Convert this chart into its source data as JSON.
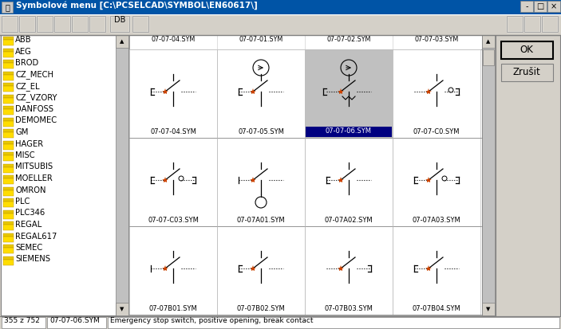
{
  "title": "Symbolové menu [C:\\PCSELCAD\\SYMBOL\\EN60617\\]",
  "bg_color": "#d4d0c8",
  "titlebar_color": "#0054a6",
  "titlebar_text_color": "#ffffff",
  "left_panel_bg": "#ffffff",
  "left_panel_items": [
    "ABB",
    "AEG",
    "BROD",
    "CZ_MECH",
    "CZ_EL",
    "CZ_VZORY",
    "DANFOSS",
    "DEMOMEC",
    "GM",
    "HAGER",
    "MISC",
    "MITSUBIS",
    "MOELLER",
    "OMRON",
    "PLC",
    "PLC346",
    "REGAL",
    "REGAL617",
    "SEMEC",
    "SIEMENS"
  ],
  "statusbar_left": "355 z 752",
  "statusbar_mid": "07-07-06.SYM",
  "statusbar_right": "Emergency stop switch, positive opening, break contact",
  "top_row_labels": [
    "07-07-04.SYM",
    "07-07-01.SYM",
    "07-07-02.SYM",
    "07-07-03.SYM"
  ],
  "grid_labels": [
    [
      "07-07-04.SYM",
      "07-07-05.SYM",
      "07-07-06.SYM",
      "07-07-C0.SYM"
    ],
    [
      "07-07-C03.SYM",
      "07-07A01.SYM",
      "07-07A02.SYM",
      "07-07A03.SYM"
    ],
    [
      "07-07B01.SYM",
      "07-07B02.SYM",
      "07-07B03.SYM",
      "07-07B04.SYM"
    ]
  ],
  "selected_cell": [
    0,
    2
  ],
  "selected_bg": "#000080",
  "selected_text_color": "#ffffff",
  "normal_text_color": "#000000",
  "ok_button": "OK",
  "cancel_button": "Zrušit",
  "button_bg": "#d4d0c8",
  "selected_symbol_bg": "#c0c0c0",
  "scrollbar_bg": "#c0c0c0",
  "grid_area_bg": "#d4d0c8"
}
